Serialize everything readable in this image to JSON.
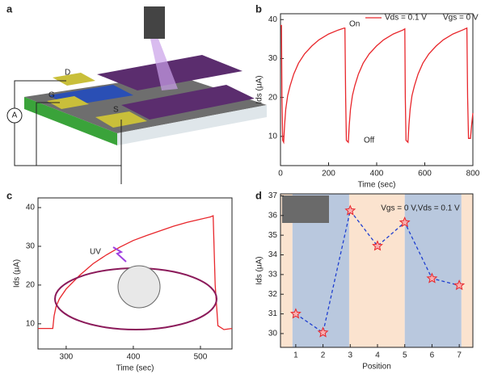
{
  "panel_labels": [
    "a",
    "b",
    "c",
    "d"
  ],
  "diagram": {
    "labels": [
      "D",
      "G",
      "S",
      "A"
    ]
  },
  "chart_data": [
    {
      "type": "line",
      "x_label": "Time (sec)",
      "y_label": "Ids (μA)",
      "x": [
        0,
        4,
        6,
        9,
        13,
        17,
        22,
        30,
        40,
        55,
        75,
        100,
        130,
        160,
        200,
        240,
        265,
        268,
        271,
        274,
        282,
        286,
        291,
        299,
        309,
        324,
        344,
        369,
        399,
        429,
        469,
        509,
        517,
        519,
        522,
        530,
        534,
        539,
        547,
        557,
        572,
        592,
        617,
        647,
        677,
        717,
        757,
        775,
        778,
        782,
        790,
        795,
        800
      ],
      "series": [
        {
          "name": "Vds = 0.1 V",
          "color": "#e8262b",
          "values": [
            38.5,
            38.5,
            20,
            9,
            8.5,
            13,
            17,
            20.5,
            23,
            26,
            28.8,
            31.2,
            33.2,
            34.8,
            36.3,
            37.3,
            37.8,
            37.8,
            20,
            9,
            8.5,
            13,
            17,
            20.5,
            23,
            26,
            28.8,
            31.2,
            33.2,
            34.8,
            36.3,
            37.3,
            37.6,
            20,
            9,
            8.5,
            13,
            17,
            20.5,
            23,
            26,
            28.8,
            31.2,
            33.2,
            34.8,
            36.3,
            37.3,
            37.8,
            20,
            9.5,
            9.5,
            13,
            16
          ]
        }
      ],
      "xlim": [
        0,
        800
      ],
      "xticks": [
        0,
        200,
        400,
        600,
        800
      ],
      "ylim": [
        2.5,
        41.5
      ],
      "yticks": [
        10,
        20,
        30,
        40
      ],
      "annotations": [
        "On",
        "Off",
        "Vgs = 0 V"
      ]
    },
    {
      "type": "line",
      "x_label": "Time (sec)",
      "y_label": "Ids (μA)",
      "x": [
        258,
        280,
        282,
        285,
        290,
        300,
        320,
        340,
        360,
        380,
        400,
        420,
        440,
        460,
        480,
        500,
        515,
        519,
        522,
        526,
        535,
        547
      ],
      "series": [
        {
          "color": "#e8262b",
          "values": [
            8.8,
            8.8,
            12,
            14.5,
            16.5,
            19,
            22.5,
            25.5,
            27.8,
            29.8,
            31.5,
            32.8,
            34,
            35.2,
            36.2,
            37,
            37.6,
            37.9,
            20,
            9.5,
            8.5,
            8.8
          ]
        }
      ],
      "xlim": [
        258,
        547
      ],
      "xticks": [
        300,
        400,
        500
      ],
      "ylim": [
        3.5,
        42.5
      ],
      "yticks": [
        10,
        20,
        30,
        40
      ],
      "annotations": [
        "UV"
      ]
    },
    {
      "type": "line",
      "x_label": "Position",
      "y_label": "Ids (μA)",
      "x": [
        1,
        2,
        3,
        4,
        5,
        6,
        7
      ],
      "series": [
        {
          "color": "#1f3fd0",
          "marker_color": "#e8262b",
          "marker": "star",
          "dashed": true,
          "values": [
            31.0,
            30.05,
            36.25,
            34.45,
            35.65,
            32.8,
            32.45
          ]
        }
      ],
      "shaded_regions": [
        {
          "x": [
            0.44,
            0.88
          ],
          "color": "#fbe3cf"
        },
        {
          "x": [
            0.88,
            2.96
          ],
          "color": "#b9c8de"
        },
        {
          "x": [
            2.96,
            5.0
          ],
          "color": "#fbe3cf"
        },
        {
          "x": [
            5.0,
            7.08
          ],
          "color": "#b9c8de"
        },
        {
          "x": [
            7.08,
            7.5
          ],
          "color": "#fbe3cf"
        }
      ],
      "xlim": [
        0.44,
        7.5
      ],
      "xticks": [
        1,
        2,
        3,
        4,
        5,
        6,
        7
      ],
      "ylim": [
        29.3,
        37.1
      ],
      "yticks": [
        30,
        31,
        32,
        33,
        34,
        35,
        36,
        37
      ],
      "annotations": [
        "Vgs = 0 V,Vds = 0.1 V"
      ]
    }
  ]
}
